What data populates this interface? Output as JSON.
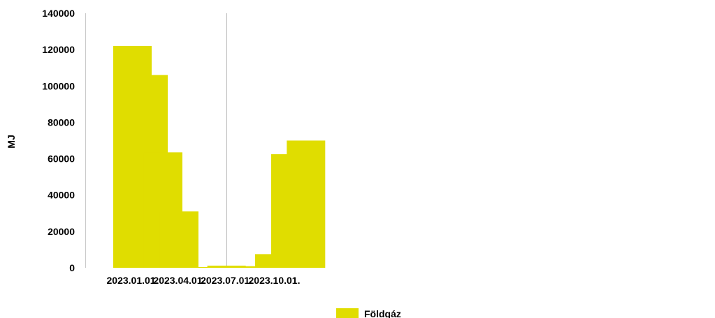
{
  "chart_data": {
    "type": "bar",
    "ylabel": "MJ",
    "xlabel": "",
    "ylim": [
      0,
      140000
    ],
    "yticks": [
      0,
      20000,
      40000,
      60000,
      80000,
      100000,
      120000,
      140000
    ],
    "x_tick_labels": [
      {
        "date": "2023-01-01",
        "label": "2023.01.01."
      },
      {
        "date": "2023-04-01",
        "label": "2023.04.01."
      },
      {
        "date": "2023-07-01",
        "label": "2023.07.01."
      },
      {
        "date": "2023-10-01",
        "label": "2023.10.01."
      }
    ],
    "vertical_reference_line": {
      "date": "2023-07-01"
    },
    "color": "#e0dd00",
    "grid": false,
    "legend_position": "bottom",
    "series": [
      {
        "name": "Földgáz",
        "points": [
          {
            "date": "2023-01-01",
            "value": 122000
          },
          {
            "date": "2023-02-01",
            "value": 106000
          },
          {
            "date": "2023-03-01",
            "value": 63500
          },
          {
            "date": "2023-04-01",
            "value": 31000
          },
          {
            "date": "2023-05-01",
            "value": 0
          },
          {
            "date": "2023-06-01",
            "value": 300
          },
          {
            "date": "2023-07-01",
            "value": 1200
          },
          {
            "date": "2023-08-01",
            "value": 500
          },
          {
            "date": "2023-09-01",
            "value": 900
          },
          {
            "date": "2023-10-01",
            "value": 7500
          },
          {
            "date": "2023-11-01",
            "value": 62500
          },
          {
            "date": "2023-12-01",
            "value": 70000
          }
        ]
      }
    ]
  }
}
